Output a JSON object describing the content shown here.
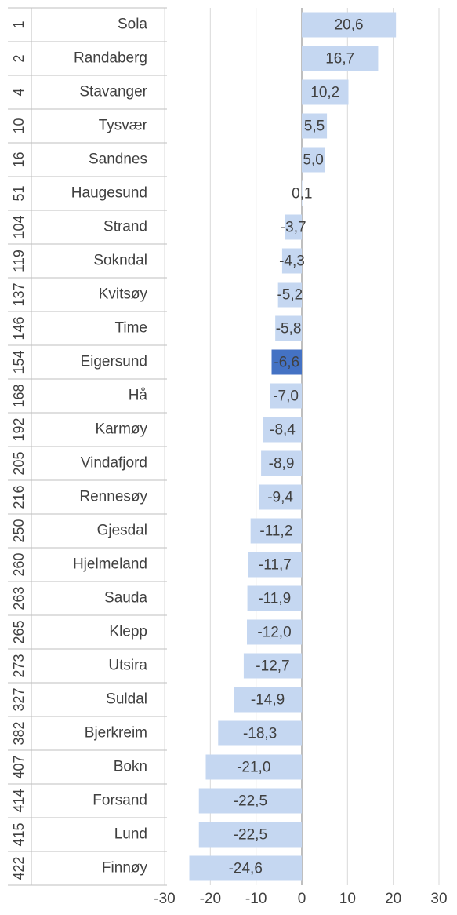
{
  "chart_data": {
    "type": "bar",
    "orientation": "horizontal",
    "ranks": [
      1,
      2,
      4,
      10,
      16,
      51,
      104,
      119,
      137,
      146,
      154,
      168,
      192,
      205,
      216,
      250,
      260,
      263,
      265,
      273,
      327,
      382,
      407,
      414,
      415,
      422
    ],
    "categories": [
      "Sola",
      "Randaberg",
      "Stavanger",
      "Tysvær",
      "Sandnes",
      "Haugesund",
      "Strand",
      "Sokndal",
      "Kvitsøy",
      "Time",
      "Eigersund",
      "Hå",
      "Karmøy",
      "Vindafjord",
      "Rennesøy",
      "Gjesdal",
      "Hjelmeland",
      "Sauda",
      "Klepp",
      "Utsira",
      "Suldal",
      "Bjerkreim",
      "Bokn",
      "Forsand",
      "Lund",
      "Finnøy"
    ],
    "values": [
      20.6,
      16.7,
      10.2,
      5.5,
      5.0,
      0.1,
      -3.7,
      -4.3,
      -5.2,
      -5.8,
      -6.6,
      -7.0,
      -8.4,
      -8.9,
      -9.4,
      -11.2,
      -11.7,
      -11.9,
      -12.0,
      -12.7,
      -14.9,
      -18.3,
      -21.0,
      -22.5,
      -22.5,
      -24.6
    ],
    "value_labels": [
      "20,6",
      "16,7",
      "10,2",
      "5,5",
      "5,0",
      "0,1",
      "-3,7",
      "-4,3",
      "-5,2",
      "-5,8",
      "-6,6",
      "-7,0",
      "-8,4",
      "-8,9",
      "-9,4",
      "-11,2",
      "-11,7",
      "-11,9",
      "-12,0",
      "-12,7",
      "-14,9",
      "-18,3",
      "-21,0",
      "-22,5",
      "-22,5",
      "-24,6"
    ],
    "colors": [
      "#c5d7f1",
      "#c5d7f1",
      "#c5d7f1",
      "#c5d7f1",
      "#c5d7f1",
      "#c5d7f1",
      "#c5d7f1",
      "#c5d7f1",
      "#c5d7f1",
      "#c5d7f1",
      "#4472c4",
      "#c5d7f1",
      "#c5d7f1",
      "#c5d7f1",
      "#c5d7f1",
      "#c5d7f1",
      "#c5d7f1",
      "#c5d7f1",
      "#c5d7f1",
      "#c5d7f1",
      "#c5d7f1",
      "#c5d7f1",
      "#c5d7f1",
      "#c5d7f1",
      "#c5d7f1",
      "#c5d7f1"
    ],
    "xlim": [
      -30,
      30
    ],
    "xticks": [
      -30,
      -20,
      -10,
      0,
      10,
      20,
      30
    ],
    "grid": true
  }
}
